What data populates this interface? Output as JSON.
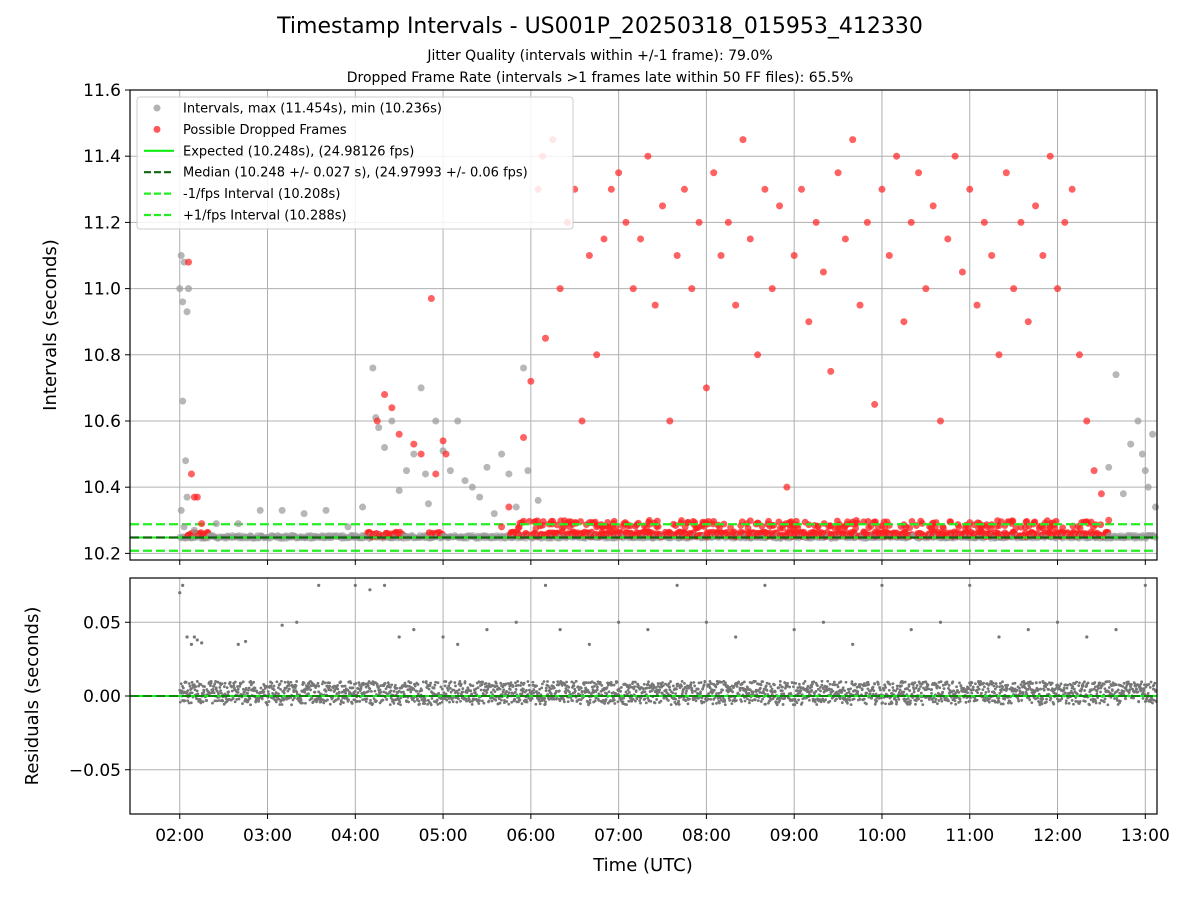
{
  "figure": {
    "title": "Timestamp Intervals - US001P_20250318_015953_412330",
    "subtitle_1": "Jitter Quality (intervals within +/-1 frame): 79.0%",
    "subtitle_2": "Dropped Frame Rate (intervals >1 frames late within 50 FF files): 65.5%"
  },
  "colors": {
    "intervals": "#999999",
    "dropped": "#ff2020",
    "expected": "#11ee11",
    "median": "#116611",
    "fps_bounds": "#22ee22",
    "residuals": "#777777",
    "grid": "#b0b0b0"
  },
  "chart_data": [
    {
      "type": "scatter",
      "panel": "top",
      "ylabel": "Intervals (seconds)",
      "ylim": [
        10.18,
        11.6
      ],
      "yticks": [
        "10.2",
        "10.4",
        "10.6",
        "10.8",
        "11.0",
        "11.2",
        "11.4",
        "11.6"
      ],
      "xlim": [
        "01:26",
        "13:08"
      ],
      "grid": true,
      "legend_position": "upper-left",
      "legend": [
        {
          "label": "Intervals, max (11.454s), min (10.236s)",
          "marker": "dot",
          "color": "#999999"
        },
        {
          "label": "Possible Dropped Frames",
          "marker": "dot",
          "color": "#ff2020"
        },
        {
          "label": "Expected (10.248s), (24.98126 fps)",
          "marker": "solid",
          "color": "#11ee11"
        },
        {
          "label": "Median (10.248 +/- 0.027 s), (24.97993 +/- 0.06 fps)",
          "marker": "dashed",
          "color": "#116611"
        },
        {
          "label": "-1/fps Interval (10.208s)",
          "marker": "dashed",
          "color": "#22ee22"
        },
        {
          "label": "+1/fps Interval (10.288s)",
          "marker": "dashed",
          "color": "#22ee22"
        }
      ],
      "lines": [
        {
          "name": "Expected",
          "y": 10.248
        },
        {
          "name": "Median",
          "y": 10.248
        },
        {
          "name": "-1/fps Interval",
          "y": 10.208
        },
        {
          "name": "+1/fps Interval",
          "y": 10.288
        }
      ],
      "series": [
        {
          "name": "Intervals",
          "points": [
            [
              "02:00",
              11.0
            ],
            [
              "02:01",
              11.1
            ],
            [
              "02:02",
              10.96
            ],
            [
              "02:03",
              11.08
            ],
            [
              "02:05",
              10.93
            ],
            [
              "02:06",
              11.0
            ],
            [
              "02:02",
              10.66
            ],
            [
              "02:04",
              10.48
            ],
            [
              "02:05",
              10.37
            ],
            [
              "02:01",
              10.33
            ],
            [
              "02:03",
              10.28
            ],
            [
              "02:10",
              10.27
            ],
            [
              "02:25",
              10.29
            ],
            [
              "02:40",
              10.29
            ],
            [
              "02:55",
              10.33
            ],
            [
              "03:10",
              10.33
            ],
            [
              "03:25",
              10.32
            ],
            [
              "03:40",
              10.33
            ],
            [
              "03:55",
              10.28
            ],
            [
              "04:05",
              10.34
            ],
            [
              "04:12",
              10.76
            ],
            [
              "04:14",
              10.61
            ],
            [
              "04:16",
              10.58
            ],
            [
              "04:20",
              10.52
            ],
            [
              "04:25",
              10.6
            ],
            [
              "04:30",
              10.39
            ],
            [
              "04:35",
              10.45
            ],
            [
              "04:40",
              10.5
            ],
            [
              "04:45",
              10.7
            ],
            [
              "04:48",
              10.44
            ],
            [
              "04:50",
              10.35
            ],
            [
              "04:55",
              10.6
            ],
            [
              "05:00",
              10.51
            ],
            [
              "05:05",
              10.45
            ],
            [
              "05:10",
              10.6
            ],
            [
              "05:15",
              10.42
            ],
            [
              "05:20",
              10.4
            ],
            [
              "05:25",
              10.37
            ],
            [
              "05:30",
              10.46
            ],
            [
              "05:35",
              10.32
            ],
            [
              "05:40",
              10.5
            ],
            [
              "05:45",
              10.44
            ],
            [
              "05:50",
              10.34
            ],
            [
              "05:55",
              10.76
            ],
            [
              "05:58",
              10.45
            ],
            [
              "06:05",
              10.36
            ],
            [
              "12:40",
              10.74
            ],
            [
              "12:45",
              10.38
            ],
            [
              "12:50",
              10.53
            ],
            [
              "12:55",
              10.6
            ],
            [
              "13:00",
              10.45
            ],
            [
              "13:02",
              10.4
            ],
            [
              "13:05",
              10.56
            ],
            [
              "13:07",
              10.34
            ],
            [
              "12:35",
              10.46
            ],
            [
              "12:58",
              10.5
            ]
          ]
        },
        {
          "name": "Possible Dropped Frames",
          "points": [
            [
              "02:08",
              10.44
            ],
            [
              "02:10",
              10.37
            ],
            [
              "02:12",
              10.37
            ],
            [
              "02:15",
              10.29
            ],
            [
              "02:06",
              11.08
            ],
            [
              "04:15",
              10.6
            ],
            [
              "04:20",
              10.68
            ],
            [
              "04:25",
              10.64
            ],
            [
              "04:30",
              10.56
            ],
            [
              "04:40",
              10.53
            ],
            [
              "04:45",
              10.5
            ],
            [
              "04:52",
              10.97
            ],
            [
              "04:55",
              10.44
            ],
            [
              "05:00",
              10.54
            ],
            [
              "05:02",
              10.5
            ],
            [
              "05:40",
              10.28
            ],
            [
              "05:45",
              10.34
            ],
            [
              "05:55",
              10.55
            ],
            [
              "06:00",
              10.72
            ],
            [
              "06:05",
              11.3
            ],
            [
              "06:08",
              11.4
            ],
            [
              "06:10",
              10.85
            ],
            [
              "06:15",
              11.45
            ],
            [
              "06:20",
              11.0
            ],
            [
              "06:25",
              11.2
            ],
            [
              "06:30",
              11.3
            ],
            [
              "06:35",
              10.6
            ],
            [
              "06:40",
              11.1
            ],
            [
              "06:45",
              10.8
            ],
            [
              "06:50",
              11.15
            ],
            [
              "06:55",
              11.3
            ],
            [
              "07:00",
              11.35
            ],
            [
              "07:05",
              11.2
            ],
            [
              "07:10",
              11.0
            ],
            [
              "07:15",
              11.15
            ],
            [
              "07:20",
              11.4
            ],
            [
              "07:25",
              10.95
            ],
            [
              "07:30",
              11.25
            ],
            [
              "07:35",
              10.6
            ],
            [
              "07:40",
              11.1
            ],
            [
              "07:45",
              11.3
            ],
            [
              "07:50",
              11.0
            ],
            [
              "07:55",
              11.2
            ],
            [
              "08:00",
              10.7
            ],
            [
              "08:05",
              11.35
            ],
            [
              "08:10",
              11.1
            ],
            [
              "08:15",
              11.2
            ],
            [
              "08:20",
              10.95
            ],
            [
              "08:25",
              11.45
            ],
            [
              "08:30",
              11.15
            ],
            [
              "08:35",
              10.8
            ],
            [
              "08:40",
              11.3
            ],
            [
              "08:45",
              11.0
            ],
            [
              "08:50",
              11.25
            ],
            [
              "08:55",
              10.4
            ],
            [
              "09:00",
              11.1
            ],
            [
              "09:05",
              11.3
            ],
            [
              "09:10",
              10.9
            ],
            [
              "09:15",
              11.2
            ],
            [
              "09:20",
              11.05
            ],
            [
              "09:25",
              10.75
            ],
            [
              "09:30",
              11.35
            ],
            [
              "09:35",
              11.15
            ],
            [
              "09:40",
              11.45
            ],
            [
              "09:45",
              10.95
            ],
            [
              "09:50",
              11.2
            ],
            [
              "09:55",
              10.65
            ],
            [
              "10:00",
              11.3
            ],
            [
              "10:05",
              11.1
            ],
            [
              "10:10",
              11.4
            ],
            [
              "10:15",
              10.9
            ],
            [
              "10:20",
              11.2
            ],
            [
              "10:25",
              11.35
            ],
            [
              "10:30",
              11.0
            ],
            [
              "10:35",
              11.25
            ],
            [
              "10:40",
              10.6
            ],
            [
              "10:45",
              11.15
            ],
            [
              "10:50",
              11.4
            ],
            [
              "10:55",
              11.05
            ],
            [
              "11:00",
              11.3
            ],
            [
              "11:05",
              10.95
            ],
            [
              "11:10",
              11.2
            ],
            [
              "11:15",
              11.1
            ],
            [
              "11:20",
              10.8
            ],
            [
              "11:25",
              11.35
            ],
            [
              "11:30",
              11.0
            ],
            [
              "11:35",
              11.2
            ],
            [
              "11:40",
              10.9
            ],
            [
              "11:45",
              11.25
            ],
            [
              "11:50",
              11.1
            ],
            [
              "11:55",
              11.4
            ],
            [
              "12:00",
              11.0
            ],
            [
              "12:05",
              11.2
            ],
            [
              "12:10",
              11.3
            ],
            [
              "12:15",
              10.8
            ],
            [
              "12:20",
              10.6
            ],
            [
              "12:25",
              10.45
            ],
            [
              "12:30",
              10.38
            ],
            [
              "12:35",
              10.3
            ]
          ]
        }
      ]
    },
    {
      "type": "scatter",
      "panel": "bottom",
      "xlabel": "Time (UTC)",
      "ylabel": "Residuals (seconds)",
      "ylim": [
        -0.08,
        0.08
      ],
      "yticks": [
        "−0.05",
        "0.00",
        "0.05"
      ],
      "xticks": [
        "02:00",
        "03:00",
        "04:00",
        "05:00",
        "06:00",
        "07:00",
        "08:00",
        "09:00",
        "10:00",
        "11:00",
        "12:00",
        "13:00"
      ],
      "grid": true,
      "lines": [
        {
          "name": "Zero",
          "y": 0.0
        }
      ],
      "series": [
        {
          "name": "Residuals",
          "points": [
            [
              "02:00",
              0.07
            ],
            [
              "02:02",
              0.075
            ],
            [
              "02:05",
              0.04
            ],
            [
              "02:08",
              0.035
            ],
            [
              "02:10",
              0.04
            ],
            [
              "02:12",
              0.038
            ],
            [
              "02:15",
              0.036
            ],
            [
              "02:40",
              0.035
            ],
            [
              "02:45",
              0.037
            ],
            [
              "03:10",
              0.048
            ],
            [
              "03:20",
              0.05
            ],
            [
              "03:35",
              0.075
            ],
            [
              "04:00",
              0.075
            ],
            [
              "04:10",
              0.072
            ],
            [
              "04:20",
              0.075
            ],
            [
              "04:30",
              0.04
            ],
            [
              "04:40",
              0.045
            ],
            [
              "05:00",
              0.04
            ],
            [
              "05:10",
              0.035
            ],
            [
              "05:30",
              0.045
            ],
            [
              "05:50",
              0.05
            ],
            [
              "06:10",
              0.075
            ],
            [
              "06:20",
              0.045
            ],
            [
              "06:40",
              0.035
            ],
            [
              "07:00",
              0.05
            ],
            [
              "07:20",
              0.045
            ],
            [
              "07:40",
              0.075
            ],
            [
              "08:00",
              0.05
            ],
            [
              "08:20",
              0.04
            ],
            [
              "08:40",
              0.075
            ],
            [
              "09:00",
              0.045
            ],
            [
              "09:20",
              0.05
            ],
            [
              "09:40",
              0.035
            ],
            [
              "10:00",
              0.075
            ],
            [
              "10:20",
              0.045
            ],
            [
              "10:40",
              0.05
            ],
            [
              "11:00",
              0.075
            ],
            [
              "11:20",
              0.04
            ],
            [
              "11:40",
              0.045
            ],
            [
              "12:00",
              0.05
            ],
            [
              "12:20",
              0.04
            ],
            [
              "12:40",
              0.045
            ],
            [
              "13:00",
              0.075
            ]
          ]
        }
      ]
    }
  ]
}
